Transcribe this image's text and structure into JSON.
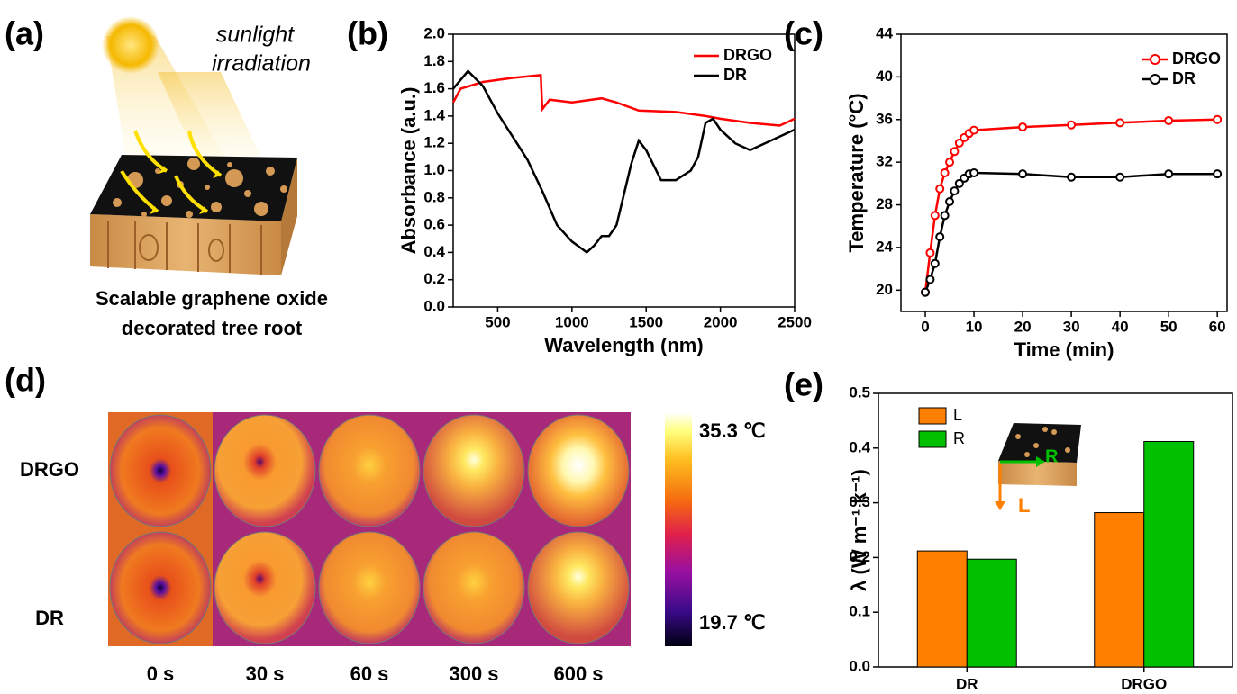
{
  "panel_a": {
    "label": "(a)",
    "annotation": [
      "sunlight",
      "irradiation"
    ],
    "caption": [
      "Scalable graphene oxide",
      "decorated tree root"
    ]
  },
  "panel_d": {
    "label": "(d)",
    "rows": [
      "DRGO",
      "DR"
    ],
    "columns": [
      "0 s",
      "30 s",
      "60 s",
      "300 s",
      "600 s"
    ],
    "colorbar_max": "35.3 ℃",
    "colorbar_min": "19.7 ℃"
  },
  "chart_data": [
    {
      "type": "line",
      "label": "(b)",
      "x_label": "Wavelength (nm)",
      "y_label": "Absorbance (a.u.)",
      "xlim": [
        200,
        2500
      ],
      "xticks": [
        500,
        1000,
        1500,
        2000,
        2500
      ],
      "ylim": [
        0,
        2
      ],
      "yticks": [
        {
          "value": 0,
          "label": "0.0"
        },
        0.2,
        0.4,
        0.6,
        0.8,
        {
          "value": 1,
          "label": "1.0"
        },
        1.2,
        1.4,
        1.6,
        1.8,
        {
          "value": 2,
          "label": "2.0"
        }
      ],
      "markers": false,
      "legend": "top-right",
      "series": [
        {
          "name": "DRGO",
          "color": "#ff0000",
          "x": [
            200,
            250,
            400,
            600,
            790,
            800,
            850,
            1000,
            1200,
            1300,
            1450,
            1700,
            1900,
            2000,
            2200,
            2400,
            2500
          ],
          "values": [
            1.5,
            1.6,
            1.65,
            1.68,
            1.7,
            1.45,
            1.52,
            1.5,
            1.53,
            1.5,
            1.44,
            1.43,
            1.4,
            1.38,
            1.35,
            1.33,
            1.38
          ]
        },
        {
          "name": "DR",
          "color": "#000000",
          "x": [
            200,
            300,
            400,
            500,
            600,
            700,
            800,
            900,
            1000,
            1100,
            1150,
            1200,
            1250,
            1300,
            1400,
            1450,
            1500,
            1600,
            1700,
            1800,
            1850,
            1900,
            1950,
            2000,
            2100,
            2200,
            2300,
            2400,
            2500
          ],
          "values": [
            1.6,
            1.73,
            1.62,
            1.42,
            1.25,
            1.08,
            0.85,
            0.6,
            0.48,
            0.4,
            0.45,
            0.52,
            0.52,
            0.6,
            1.05,
            1.22,
            1.15,
            0.93,
            0.93,
            1.0,
            1.1,
            1.35,
            1.38,
            1.3,
            1.2,
            1.15,
            1.2,
            1.25,
            1.3
          ]
        }
      ]
    },
    {
      "type": "line",
      "label": "(c)",
      "x_label": "Time (min)",
      "y_label": "Temperature (°C)",
      "xlim": [
        -5,
        62
      ],
      "xticks": [
        0,
        10,
        20,
        30,
        40,
        50,
        60
      ],
      "ylim": [
        18,
        44
      ],
      "yticks": [
        20,
        24,
        28,
        32,
        36,
        40,
        44
      ],
      "markers": true,
      "legend": "top-right",
      "series": [
        {
          "name": "DRGO",
          "color": "#ff0000",
          "x": [
            0,
            1,
            2,
            3,
            4,
            5,
            6,
            7,
            8,
            9,
            10,
            20,
            30,
            40,
            50,
            60
          ],
          "values": [
            19.8,
            23.5,
            27,
            29.5,
            31,
            32,
            33,
            33.8,
            34.3,
            34.7,
            35,
            35.3,
            35.5,
            35.7,
            35.9,
            36
          ]
        },
        {
          "name": "DR",
          "color": "#000000",
          "x": [
            0,
            1,
            2,
            3,
            4,
            5,
            6,
            7,
            8,
            9,
            10,
            20,
            30,
            40,
            50,
            60
          ],
          "values": [
            19.8,
            21,
            22.5,
            25,
            27,
            28.3,
            29.3,
            30,
            30.5,
            30.9,
            31,
            30.9,
            30.6,
            30.6,
            30.9,
            30.9
          ]
        }
      ]
    },
    {
      "type": "bar",
      "label": "(e)",
      "y_label": "λ (W m⁻¹ k⁻¹)",
      "categories": [
        "DR",
        "DRGO"
      ],
      "ylim": [
        0,
        0.5
      ],
      "yticks": [
        {
          "value": 0,
          "label": "0.0"
        },
        0.1,
        0.2,
        0.3,
        0.4,
        0.5
      ],
      "legend": "top-left",
      "inset_labels": [
        "R",
        "L"
      ],
      "series": [
        {
          "name": "L",
          "color": "#ff8000",
          "values": [
            0.212,
            0.282
          ]
        },
        {
          "name": "R",
          "color": "#00c000",
          "values": [
            0.197,
            0.412
          ]
        }
      ]
    }
  ]
}
